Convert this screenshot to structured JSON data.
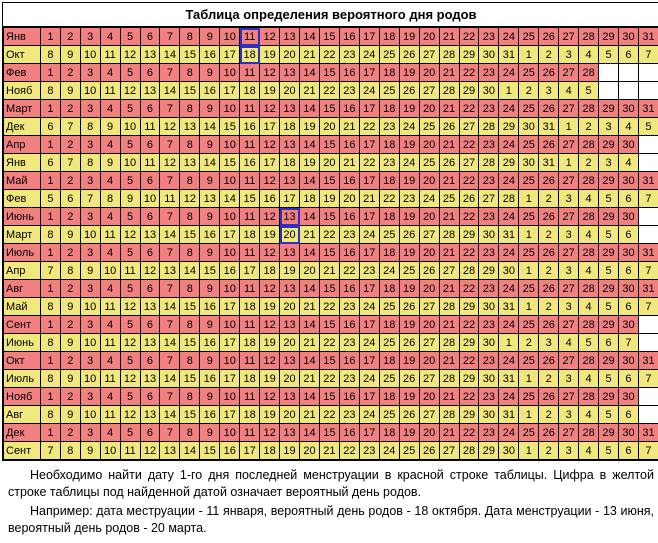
{
  "title": "Таблица определения вероятного дня родов",
  "colors": {
    "red_row": "#f28080",
    "yellow_row": "#f0e87c",
    "highlight_border": "#3030c0",
    "border": "#000000",
    "background": "#ffffff"
  },
  "fonts": {
    "family": "Arial",
    "title_size_pt": 10,
    "cell_size_pt": 8,
    "footnote_size_pt": 9.5
  },
  "highlight_cells": [
    {
      "pair_index": 0,
      "row": "red",
      "col": 11
    },
    {
      "pair_index": 0,
      "row": "yel",
      "col": 11
    },
    {
      "pair_index": 5,
      "row": "red",
      "col": 13
    },
    {
      "pair_index": 5,
      "row": "yel",
      "col": 13
    }
  ],
  "pairs": [
    {
      "red": {
        "month": "Янв",
        "cells": [
          1,
          2,
          3,
          4,
          5,
          6,
          7,
          8,
          9,
          10,
          11,
          12,
          13,
          14,
          15,
          16,
          17,
          18,
          19,
          20,
          21,
          22,
          23,
          24,
          25,
          26,
          27,
          28,
          29,
          30,
          31
        ]
      },
      "yel": {
        "month": "Окт",
        "cells": [
          8,
          9,
          10,
          11,
          12,
          13,
          14,
          15,
          16,
          17,
          18,
          19,
          20,
          21,
          22,
          23,
          24,
          25,
          26,
          27,
          28,
          29,
          30,
          31,
          1,
          2,
          3,
          4,
          5,
          6,
          7
        ]
      }
    },
    {
      "red": {
        "month": "Фев",
        "cells": [
          1,
          2,
          3,
          4,
          5,
          6,
          7,
          8,
          9,
          10,
          11,
          12,
          13,
          14,
          15,
          16,
          17,
          18,
          19,
          20,
          21,
          22,
          23,
          24,
          25,
          26,
          27,
          28,
          "",
          "",
          ""
        ]
      },
      "yel": {
        "month": "Нояб",
        "cells": [
          8,
          9,
          10,
          11,
          12,
          13,
          14,
          15,
          16,
          17,
          18,
          19,
          20,
          21,
          22,
          23,
          24,
          25,
          26,
          27,
          28,
          29,
          30,
          1,
          2,
          3,
          4,
          5,
          "",
          "",
          ""
        ]
      }
    },
    {
      "red": {
        "month": "Март",
        "cells": [
          1,
          2,
          3,
          4,
          5,
          6,
          7,
          8,
          9,
          10,
          11,
          12,
          13,
          14,
          15,
          16,
          17,
          18,
          19,
          20,
          21,
          22,
          23,
          24,
          25,
          26,
          27,
          28,
          29,
          30,
          31
        ]
      },
      "yel": {
        "month": "Дек",
        "cells": [
          6,
          7,
          8,
          9,
          10,
          11,
          12,
          13,
          14,
          15,
          16,
          17,
          18,
          19,
          20,
          21,
          22,
          23,
          24,
          25,
          26,
          27,
          28,
          29,
          30,
          31,
          1,
          2,
          3,
          4,
          5
        ]
      }
    },
    {
      "red": {
        "month": "Апр",
        "cells": [
          1,
          2,
          3,
          4,
          5,
          6,
          7,
          8,
          9,
          10,
          11,
          12,
          13,
          14,
          15,
          16,
          17,
          18,
          19,
          20,
          21,
          22,
          23,
          24,
          25,
          26,
          27,
          28,
          29,
          30,
          ""
        ]
      },
      "yel": {
        "month": "Янв",
        "cells": [
          6,
          7,
          8,
          9,
          10,
          11,
          12,
          13,
          14,
          15,
          16,
          17,
          18,
          19,
          20,
          21,
          22,
          23,
          24,
          25,
          26,
          27,
          28,
          29,
          30,
          31,
          1,
          2,
          3,
          4,
          ""
        ]
      }
    },
    {
      "red": {
        "month": "Май",
        "cells": [
          1,
          2,
          3,
          4,
          5,
          6,
          7,
          8,
          9,
          10,
          11,
          12,
          13,
          14,
          15,
          16,
          17,
          18,
          19,
          20,
          21,
          22,
          23,
          24,
          25,
          26,
          27,
          28,
          29,
          30,
          31
        ]
      },
      "yel": {
        "month": "Фев",
        "cells": [
          5,
          6,
          7,
          8,
          9,
          10,
          11,
          12,
          13,
          14,
          15,
          16,
          17,
          18,
          19,
          20,
          21,
          22,
          23,
          24,
          25,
          26,
          27,
          28,
          1,
          2,
          3,
          4,
          5,
          6,
          7
        ]
      }
    },
    {
      "red": {
        "month": "Июнь",
        "cells": [
          1,
          2,
          3,
          4,
          5,
          6,
          7,
          8,
          9,
          10,
          11,
          12,
          13,
          14,
          15,
          16,
          17,
          18,
          19,
          20,
          21,
          22,
          23,
          24,
          25,
          26,
          27,
          28,
          29,
          30,
          ""
        ]
      },
      "yel": {
        "month": "Март",
        "cells": [
          8,
          9,
          10,
          11,
          12,
          13,
          14,
          15,
          16,
          17,
          18,
          19,
          20,
          21,
          22,
          23,
          24,
          25,
          26,
          27,
          28,
          29,
          30,
          31,
          1,
          2,
          3,
          4,
          5,
          6,
          ""
        ]
      }
    },
    {
      "red": {
        "month": "Июль",
        "cells": [
          1,
          2,
          3,
          4,
          5,
          6,
          7,
          8,
          9,
          10,
          11,
          12,
          13,
          14,
          15,
          16,
          17,
          18,
          19,
          20,
          21,
          22,
          23,
          24,
          25,
          26,
          27,
          28,
          29,
          30,
          31
        ]
      },
      "yel": {
        "month": "Апр",
        "cells": [
          7,
          8,
          9,
          10,
          11,
          12,
          13,
          14,
          15,
          16,
          17,
          18,
          19,
          20,
          21,
          22,
          23,
          24,
          25,
          26,
          27,
          28,
          29,
          30,
          1,
          2,
          3,
          4,
          5,
          6,
          7
        ]
      }
    },
    {
      "red": {
        "month": "Авг",
        "cells": [
          1,
          2,
          3,
          4,
          5,
          6,
          7,
          8,
          9,
          10,
          11,
          12,
          13,
          14,
          15,
          16,
          17,
          18,
          19,
          20,
          21,
          22,
          23,
          24,
          25,
          26,
          27,
          28,
          29,
          30,
          31
        ]
      },
      "yel": {
        "month": "Май",
        "cells": [
          8,
          9,
          10,
          11,
          12,
          13,
          14,
          15,
          16,
          17,
          18,
          19,
          20,
          21,
          22,
          23,
          24,
          25,
          26,
          27,
          28,
          29,
          30,
          31,
          1,
          2,
          3,
          4,
          5,
          6,
          7
        ]
      }
    },
    {
      "red": {
        "month": "Сент",
        "cells": [
          1,
          2,
          3,
          4,
          5,
          6,
          7,
          8,
          9,
          10,
          11,
          12,
          13,
          14,
          15,
          16,
          17,
          18,
          19,
          20,
          21,
          22,
          23,
          24,
          25,
          26,
          27,
          28,
          29,
          30,
          ""
        ]
      },
      "yel": {
        "month": "Июнь",
        "cells": [
          8,
          9,
          10,
          11,
          12,
          13,
          14,
          15,
          16,
          17,
          18,
          19,
          20,
          21,
          22,
          23,
          24,
          25,
          26,
          27,
          28,
          29,
          30,
          1,
          2,
          3,
          4,
          5,
          6,
          7,
          ""
        ]
      }
    },
    {
      "red": {
        "month": "Окт",
        "cells": [
          1,
          2,
          3,
          4,
          5,
          6,
          7,
          8,
          9,
          10,
          11,
          12,
          13,
          14,
          15,
          16,
          17,
          18,
          19,
          20,
          21,
          22,
          23,
          24,
          25,
          26,
          27,
          28,
          29,
          30,
          31
        ]
      },
      "yel": {
        "month": "Июль",
        "cells": [
          8,
          9,
          10,
          11,
          12,
          13,
          14,
          15,
          16,
          17,
          18,
          19,
          20,
          21,
          22,
          23,
          24,
          25,
          26,
          27,
          28,
          29,
          30,
          31,
          1,
          2,
          3,
          4,
          5,
          6,
          7
        ]
      }
    },
    {
      "red": {
        "month": "Нояб",
        "cells": [
          1,
          2,
          3,
          4,
          5,
          6,
          7,
          8,
          9,
          10,
          11,
          12,
          13,
          14,
          15,
          16,
          17,
          18,
          19,
          20,
          21,
          22,
          23,
          24,
          25,
          26,
          27,
          28,
          29,
          30,
          ""
        ]
      },
      "yel": {
        "month": "Авг",
        "cells": [
          8,
          9,
          10,
          11,
          12,
          13,
          14,
          15,
          16,
          17,
          18,
          19,
          20,
          21,
          22,
          23,
          24,
          25,
          26,
          27,
          28,
          29,
          30,
          31,
          1,
          2,
          3,
          4,
          5,
          6,
          ""
        ]
      }
    },
    {
      "red": {
        "month": "Дек",
        "cells": [
          1,
          2,
          3,
          4,
          5,
          6,
          7,
          8,
          9,
          10,
          11,
          12,
          13,
          14,
          15,
          16,
          17,
          18,
          19,
          20,
          21,
          22,
          23,
          24,
          25,
          26,
          27,
          28,
          29,
          30,
          31
        ]
      },
      "yel": {
        "month": "Сент",
        "cells": [
          7,
          8,
          9,
          10,
          11,
          12,
          13,
          14,
          15,
          16,
          17,
          18,
          19,
          20,
          21,
          22,
          23,
          24,
          25,
          26,
          27,
          28,
          29,
          30,
          1,
          2,
          3,
          4,
          5,
          6,
          7
        ]
      }
    }
  ],
  "footnote": {
    "p1": "Необходимо найти дату 1-го дня последней менструации  в красной строке таблицы. Цифра в желтой строке таблицы под найденной датой означает вероятный день родов.",
    "p2": "Например: дата меструации - 11 января, вероятный день родов - 18 октября. Дата менструации - 13 июня, вероятный день родов - 20 марта."
  }
}
